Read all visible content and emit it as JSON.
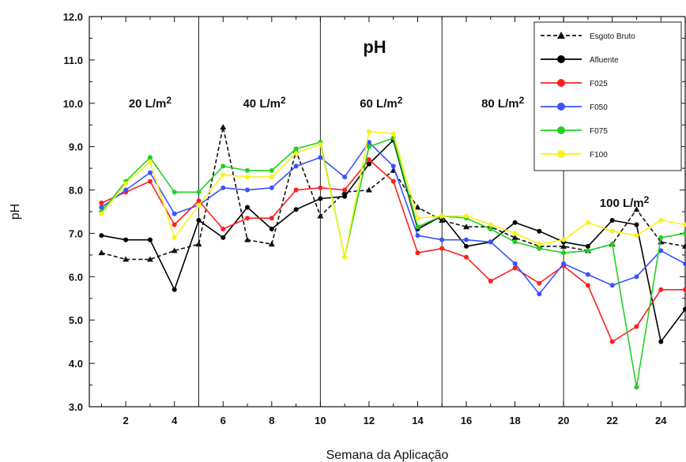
{
  "chart_data": {
    "type": "line",
    "title": "pH",
    "xlabel": "Semana da Aplicação",
    "ylabel": "pH",
    "xlim": [
      0.5,
      25
    ],
    "ylim": [
      3.0,
      12.0
    ],
    "x_ticks": [
      2,
      4,
      6,
      8,
      10,
      12,
      14,
      16,
      18,
      20,
      22,
      24
    ],
    "x_tick_labels": [
      "2",
      "4",
      "6",
      "8",
      "10",
      "12",
      "14",
      "16",
      "18",
      "20",
      "22",
      "24"
    ],
    "y_ticks": [
      3,
      4,
      5,
      6,
      7,
      8,
      9,
      10,
      11,
      12
    ],
    "y_tick_labels": [
      "3.0",
      "4.0",
      "5.0",
      "6.0",
      "7.0",
      "8.0",
      "9.0",
      "10.0",
      "11.0",
      "12.0"
    ],
    "grid": false,
    "legend_position": "top-right",
    "region_dividers": [
      5,
      10,
      15,
      20
    ],
    "regions": [
      {
        "label": "20 L/m",
        "sup": "2",
        "x": 3,
        "y": 10.0
      },
      {
        "label": "40 L/m",
        "sup": "2",
        "x": 7.7,
        "y": 10.0
      },
      {
        "label": "60 L/m",
        "sup": "2",
        "x": 12.5,
        "y": 10.0
      },
      {
        "label": "80 L/m",
        "sup": "2",
        "x": 17.5,
        "y": 10.0
      },
      {
        "label": "100 L/m",
        "sup": "2",
        "x": 22.5,
        "y": 7.7
      }
    ],
    "series": [
      {
        "name": "Esgoto Bruto",
        "color": "#111111",
        "dashed": true,
        "marker": "triangle",
        "x": [
          1,
          2,
          3,
          4,
          5,
          6,
          7,
          8,
          9,
          10,
          11,
          12,
          13,
          14,
          15,
          16,
          17,
          18,
          19,
          20,
          21,
          22,
          23,
          24,
          25
        ],
        "y": [
          6.55,
          6.4,
          6.4,
          6.6,
          6.75,
          9.45,
          6.85,
          6.75,
          8.9,
          7.4,
          7.95,
          8.0,
          8.45,
          7.6,
          7.3,
          7.15,
          7.15,
          6.9,
          6.7,
          6.7,
          6.6,
          6.75,
          7.55,
          6.8,
          6.7
        ]
      },
      {
        "name": "Afluente",
        "color": "#000000",
        "dashed": false,
        "marker": "circle",
        "x": [
          1,
          2,
          3,
          4,
          5,
          6,
          7,
          8,
          9,
          10,
          11,
          12,
          13,
          14,
          15,
          16,
          17,
          18,
          19,
          20,
          21,
          22,
          23,
          24,
          25
        ],
        "y": [
          6.95,
          6.85,
          6.85,
          5.7,
          7.3,
          6.9,
          7.6,
          7.1,
          7.55,
          7.8,
          7.85,
          8.6,
          9.15,
          7.1,
          7.4,
          6.7,
          6.8,
          7.25,
          7.05,
          6.8,
          6.7,
          7.3,
          7.2,
          4.5,
          5.25
        ]
      },
      {
        "name": "F025",
        "color": "#ff1f1f",
        "dashed": false,
        "marker": "circle",
        "x": [
          1,
          2,
          3,
          4,
          5,
          6,
          7,
          8,
          9,
          10,
          11,
          12,
          13,
          14,
          15,
          16,
          17,
          18,
          19,
          20,
          21,
          22,
          23,
          24,
          25
        ],
        "y": [
          7.7,
          7.95,
          8.2,
          7.2,
          7.75,
          7.1,
          7.35,
          7.35,
          8.0,
          8.05,
          8.0,
          8.7,
          8.2,
          6.55,
          6.65,
          6.45,
          5.9,
          6.2,
          5.85,
          6.25,
          5.8,
          4.5,
          4.85,
          5.7,
          5.7
        ]
      },
      {
        "name": "F050",
        "color": "#3a52ff",
        "dashed": false,
        "marker": "circle",
        "x": [
          1,
          2,
          3,
          4,
          5,
          6,
          7,
          8,
          9,
          10,
          11,
          12,
          13,
          14,
          15,
          16,
          17,
          18,
          19,
          20,
          21,
          22,
          23,
          24,
          25
        ],
        "y": [
          7.6,
          8.0,
          8.4,
          7.45,
          7.65,
          8.05,
          8.0,
          8.05,
          8.55,
          8.75,
          8.3,
          9.1,
          8.55,
          6.95,
          6.85,
          6.85,
          6.8,
          6.3,
          5.6,
          6.3,
          6.05,
          5.8,
          6.0,
          6.6,
          6.3
        ]
      },
      {
        "name": "F075",
        "color": "#21d121",
        "dashed": false,
        "marker": "circle",
        "x": [
          1,
          2,
          3,
          4,
          5,
          6,
          7,
          8,
          9,
          10,
          11,
          12,
          13,
          14,
          15,
          16,
          17,
          18,
          19,
          20,
          21,
          22,
          23,
          24,
          25
        ],
        "y": [
          7.5,
          8.2,
          8.75,
          7.95,
          7.95,
          8.55,
          8.45,
          8.45,
          8.95,
          9.1,
          6.45,
          9.0,
          9.2,
          7.15,
          7.4,
          7.35,
          7.1,
          6.8,
          6.65,
          6.55,
          6.6,
          6.75,
          3.45,
          6.9,
          7.0
        ]
      },
      {
        "name": "F100",
        "color": "#f7f21a",
        "dashed": false,
        "marker": "circle",
        "x": [
          1,
          2,
          3,
          4,
          5,
          6,
          7,
          8,
          9,
          10,
          11,
          12,
          13,
          14,
          15,
          16,
          17,
          18,
          19,
          20,
          21,
          22,
          23,
          24,
          25
        ],
        "y": [
          7.45,
          8.15,
          8.65,
          6.9,
          7.65,
          8.35,
          8.3,
          8.3,
          8.85,
          9.05,
          6.45,
          9.35,
          9.3,
          7.35,
          7.4,
          7.4,
          7.2,
          7.0,
          6.75,
          6.85,
          7.25,
          7.05,
          6.95,
          7.3,
          7.2
        ]
      }
    ]
  }
}
